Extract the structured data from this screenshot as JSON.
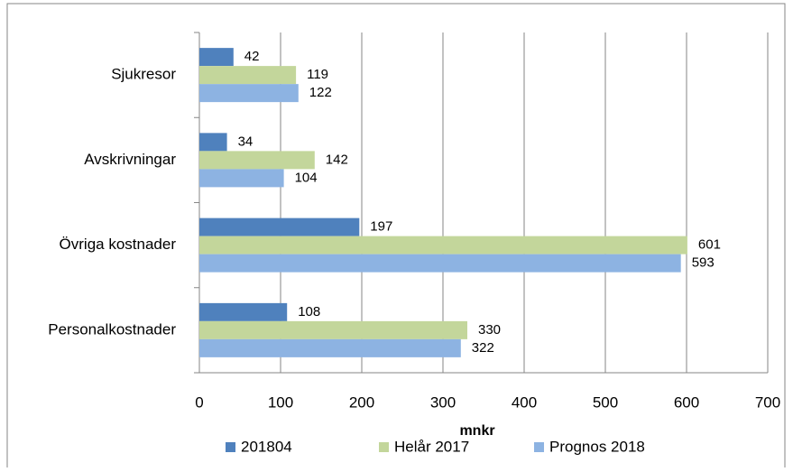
{
  "chart_data": {
    "type": "hbar",
    "categories": [
      "Sjukresor",
      "Avskrivningar",
      "Övriga kostnader",
      "Personalkostnader"
    ],
    "series": [
      {
        "name": "201804",
        "color": "#4f81bd",
        "values": [
          42,
          34,
          197,
          108
        ]
      },
      {
        "name": "Helår 2017",
        "color": "#c3d69b",
        "values": [
          119,
          142,
          601,
          330
        ]
      },
      {
        "name": "Prognos 2018",
        "color": "#8db3e2",
        "values": [
          122,
          104,
          593,
          322
        ]
      }
    ],
    "xlabel": "mnkr",
    "xlim": [
      0,
      700
    ],
    "xticks": [
      0,
      100,
      200,
      300,
      400,
      500,
      600,
      700
    ],
    "grid": true,
    "legend": "bottom"
  }
}
